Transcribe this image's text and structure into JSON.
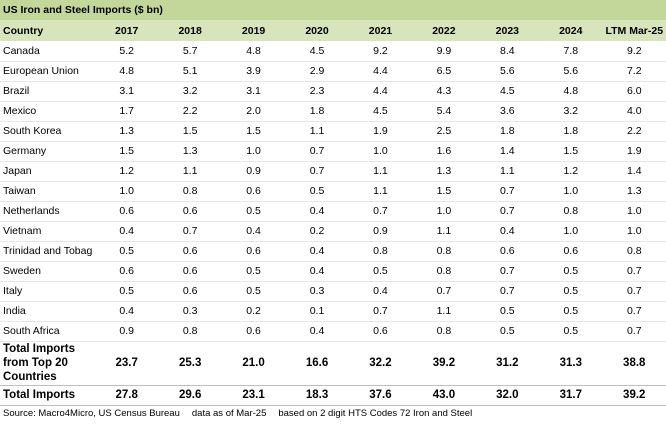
{
  "title": "US Iron and Steel Imports ($ bn)",
  "table": {
    "header": [
      "Country",
      "2017",
      "2018",
      "2019",
      "2020",
      "2021",
      "2022",
      "2023",
      "2024",
      "LTM Mar-25"
    ],
    "rows": [
      [
        "Canada",
        "5.2",
        "5.7",
        "4.8",
        "4.5",
        "9.2",
        "9.9",
        "8.4",
        "7.8",
        "9.2"
      ],
      [
        "European Union",
        "4.8",
        "5.1",
        "3.9",
        "2.9",
        "4.4",
        "6.5",
        "5.6",
        "5.6",
        "7.2"
      ],
      [
        "Brazil",
        "3.1",
        "3.2",
        "3.1",
        "2.3",
        "4.4",
        "4.3",
        "4.5",
        "4.8",
        "6.0"
      ],
      [
        "Mexico",
        "1.7",
        "2.2",
        "2.0",
        "1.8",
        "4.5",
        "5.4",
        "3.6",
        "3.2",
        "4.0"
      ],
      [
        "South Korea",
        "1.3",
        "1.5",
        "1.5",
        "1.1",
        "1.9",
        "2.5",
        "1.8",
        "1.8",
        "2.2"
      ],
      [
        "Germany",
        "1.5",
        "1.3",
        "1.0",
        "0.7",
        "1.0",
        "1.6",
        "1.4",
        "1.5",
        "1.9"
      ],
      [
        "Japan",
        "1.2",
        "1.1",
        "0.9",
        "0.7",
        "1.1",
        "1.3",
        "1.1",
        "1.2",
        "1.4"
      ],
      [
        "Taiwan",
        "1.0",
        "0.8",
        "0.6",
        "0.5",
        "1.1",
        "1.5",
        "0.7",
        "1.0",
        "1.3"
      ],
      [
        "Netherlands",
        "0.6",
        "0.6",
        "0.5",
        "0.4",
        "0.7",
        "1.0",
        "0.7",
        "0.8",
        "1.0"
      ],
      [
        "Vietnam",
        "0.4",
        "0.7",
        "0.4",
        "0.2",
        "0.9",
        "1.1",
        "0.4",
        "1.0",
        "1.0"
      ],
      [
        "Trinidad and Tobag",
        "0.5",
        "0.6",
        "0.6",
        "0.4",
        "0.8",
        "0.8",
        "0.6",
        "0.6",
        "0.8"
      ],
      [
        "Sweden",
        "0.6",
        "0.6",
        "0.5",
        "0.4",
        "0.5",
        "0.8",
        "0.7",
        "0.5",
        "0.7"
      ],
      [
        "Italy",
        "0.5",
        "0.6",
        "0.5",
        "0.3",
        "0.4",
        "0.7",
        "0.7",
        "0.5",
        "0.7"
      ],
      [
        "India",
        "0.4",
        "0.3",
        "0.2",
        "0.1",
        "0.7",
        "1.1",
        "0.5",
        "0.5",
        "0.7"
      ],
      [
        "South Africa",
        "0.9",
        "0.8",
        "0.6",
        "0.4",
        "0.6",
        "0.8",
        "0.5",
        "0.5",
        "0.7"
      ]
    ],
    "totals": [
      [
        "Total Imports from Top 20 Countries",
        "23.7",
        "25.3",
        "21.0",
        "16.6",
        "32.2",
        "39.2",
        "31.2",
        "31.3",
        "38.8"
      ],
      [
        "Total Imports",
        "27.8",
        "29.6",
        "23.1",
        "18.3",
        "37.6",
        "43.0",
        "32.0",
        "31.7",
        "39.2"
      ]
    ]
  },
  "footer": [
    "Source: Macro4Micro, US Census Bureau",
    "data as of Mar-25",
    "based on 2 digit HTS Codes 72 Iron and Steel"
  ]
}
